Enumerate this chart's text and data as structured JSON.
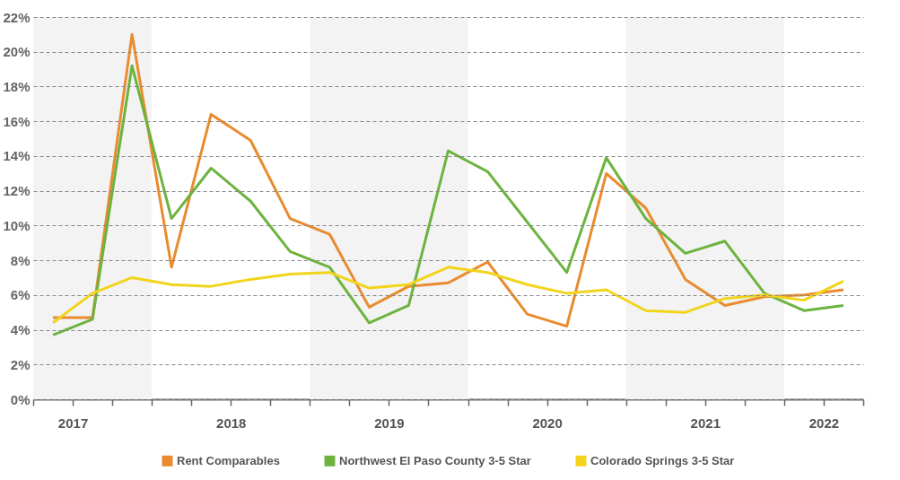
{
  "chart_data": {
    "type": "line",
    "x": [
      2017.375,
      2017.625,
      2017.875,
      2018.125,
      2018.375,
      2018.625,
      2018.875,
      2019.125,
      2019.375,
      2019.625,
      2019.875,
      2020.125,
      2020.375,
      2020.625,
      2020.875,
      2021.125,
      2021.375,
      2021.625,
      2021.875,
      2022.125,
      2022.375
    ],
    "series": [
      {
        "name": "Rent Comparables",
        "color": "#e98b2e",
        "values": [
          4.7,
          4.7,
          21.0,
          7.6,
          16.4,
          14.9,
          10.4,
          9.5,
          5.3,
          6.5,
          6.7,
          7.9,
          4.9,
          4.2,
          13.0,
          11.0,
          6.9,
          5.4,
          5.9,
          6.0,
          6.3
        ]
      },
      {
        "name": "Northwest El Paso County 3-5 Star",
        "color": "#6db33f",
        "values": [
          3.7,
          4.6,
          19.2,
          10.4,
          13.3,
          11.4,
          8.5,
          7.6,
          4.4,
          5.4,
          14.3,
          13.1,
          10.2,
          7.3,
          13.9,
          10.4,
          8.4,
          9.1,
          6.1,
          5.1,
          5.4
        ]
      },
      {
        "name": "Colorado Springs 3-5 Star",
        "color": "#f2d41b",
        "values": [
          4.4,
          6.1,
          7.0,
          6.6,
          6.5,
          6.9,
          7.2,
          7.3,
          6.4,
          6.6,
          7.6,
          7.3,
          6.6,
          6.1,
          6.3,
          5.1,
          5.0,
          5.8,
          6.0,
          5.7,
          6.8
        ]
      }
    ],
    "xlim": [
      2017.25,
      2022.5
    ],
    "xticks": [
      {
        "value": 2017.25,
        "label": null
      },
      {
        "value": 2017.5,
        "label": "2017"
      },
      {
        "value": 2017.75,
        "label": null
      },
      {
        "value": 2018,
        "label": null
      },
      {
        "value": 2018.25,
        "label": null
      },
      {
        "value": 2018.5,
        "label": "2018"
      },
      {
        "value": 2018.75,
        "label": null
      },
      {
        "value": 2019,
        "label": null
      },
      {
        "value": 2019.25,
        "label": null
      },
      {
        "value": 2019.5,
        "label": "2019"
      },
      {
        "value": 2019.75,
        "label": null
      },
      {
        "value": 2020,
        "label": null
      },
      {
        "value": 2020.25,
        "label": null
      },
      {
        "value": 2020.5,
        "label": "2020"
      },
      {
        "value": 2020.75,
        "label": null
      },
      {
        "value": 2021,
        "label": null
      },
      {
        "value": 2021.25,
        "label": null
      },
      {
        "value": 2021.5,
        "label": "2021"
      },
      {
        "value": 2021.75,
        "label": null
      },
      {
        "value": 2022,
        "label": null
      },
      {
        "value": 2022.25,
        "label": "2022"
      },
      {
        "value": 2022.5,
        "label": null
      }
    ],
    "ylim": [
      0,
      22
    ],
    "yticks": [
      {
        "value": 0,
        "label": "0%"
      },
      {
        "value": 2,
        "label": "2%"
      },
      {
        "value": 4,
        "label": "4%"
      },
      {
        "value": 6,
        "label": "6%"
      },
      {
        "value": 8,
        "label": "8%"
      },
      {
        "value": 10,
        "label": "10%"
      },
      {
        "value": 12,
        "label": "12%"
      },
      {
        "value": 14,
        "label": "14%"
      },
      {
        "value": 16,
        "label": "16%"
      },
      {
        "value": 18,
        "label": "18%"
      },
      {
        "value": 20,
        "label": "20%"
      },
      {
        "value": 22,
        "label": "22%"
      }
    ],
    "bands": [
      {
        "axis": "x",
        "from": 2017.25,
        "to": 2018,
        "color": "#f3f3f3"
      },
      {
        "axis": "x",
        "from": 2019,
        "to": 2020,
        "color": "#f3f3f3"
      },
      {
        "axis": "x",
        "from": 2021,
        "to": 2022,
        "color": "#f3f3f3"
      }
    ],
    "grid": "y",
    "legend": "bottom",
    "marker": "none",
    "line_style": "solid"
  }
}
